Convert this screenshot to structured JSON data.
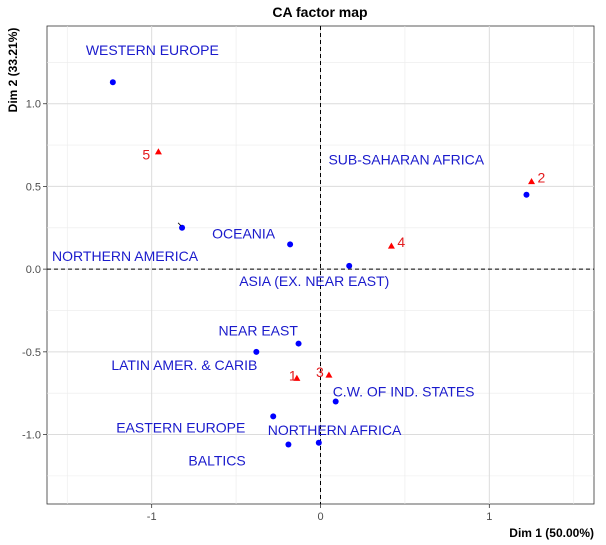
{
  "chart_data": {
    "type": "scatter",
    "title": "CA factor map",
    "xlabel": "Dim 1 (50.00%)",
    "ylabel": "Dim 2 (33.21%)",
    "xlim": [
      -1.62,
      1.62
    ],
    "ylim": [
      -1.42,
      1.47
    ],
    "xticks": [
      -1,
      0,
      1
    ],
    "yticks": [
      -1.0,
      -0.5,
      0.0,
      0.5,
      1.0
    ],
    "grid": true,
    "reference_lines": {
      "x": 0,
      "y": 0,
      "style": "dashed"
    },
    "colors": {
      "rows": "#0000ff",
      "columns": "#ff0000",
      "row_label": "#1a1acc",
      "column_label": "#e31a1c"
    },
    "series": [
      {
        "points": [
          {
            "label": "WESTERN EUROPE",
            "x": -1.23,
            "y": 1.13
          },
          {
            "label": "NORTHERN AMERICA",
            "x": -0.82,
            "y": 0.25
          },
          {
            "label": "OCEANIA",
            "x": -0.18,
            "y": 0.15
          },
          {
            "label": "SUB-SAHARAN AFRICA",
            "x": 1.22,
            "y": 0.45
          },
          {
            "label": "ASIA (EX. NEAR EAST)",
            "x": 0.17,
            "y": 0.02
          },
          {
            "label": "NEAR EAST",
            "x": -0.13,
            "y": -0.45
          },
          {
            "label": "LATIN AMER. & CARIB",
            "x": -0.38,
            "y": -0.5
          },
          {
            "label": "C.W. OF IND. STATES",
            "x": 0.09,
            "y": -0.8
          },
          {
            "label": "EASTERN EUROPE",
            "x": -0.28,
            "y": -0.89
          },
          {
            "label": "NORTHERN AFRICA",
            "x": -0.01,
            "y": -1.05
          },
          {
            "label": "BALTICS",
            "x": -0.19,
            "y": -1.06
          }
        ]
      },
      {
        "points": [
          {
            "label": "5",
            "x": -0.96,
            "y": 0.71
          },
          {
            "label": "2",
            "x": 1.25,
            "y": 0.53
          },
          {
            "label": "4",
            "x": 0.42,
            "y": 0.14
          },
          {
            "label": "1",
            "x": -0.14,
            "y": -0.66
          },
          {
            "label": "3",
            "x": 0.05,
            "y": -0.64
          }
        ]
      }
    ]
  }
}
